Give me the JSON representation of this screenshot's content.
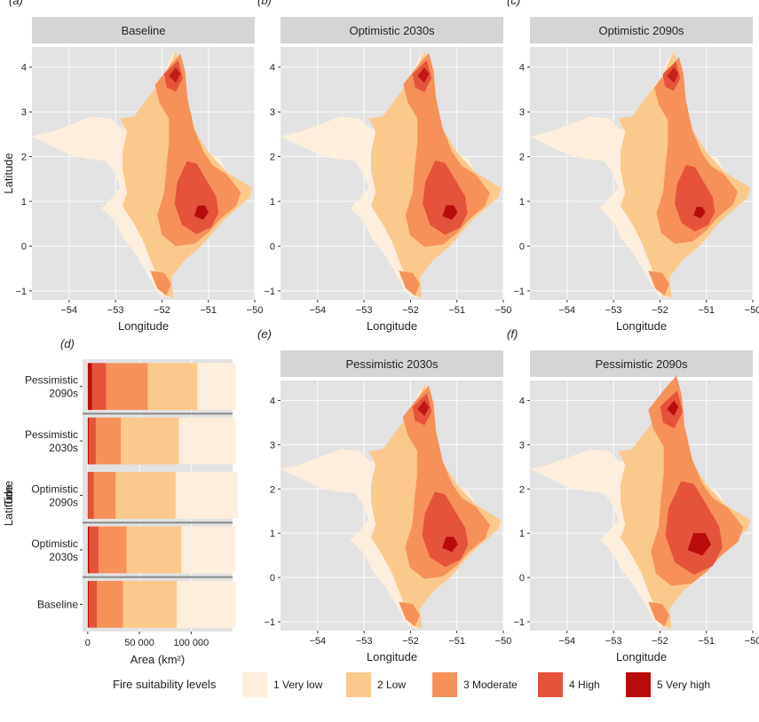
{
  "colors": {
    "panel_bg": "#e2e2e2",
    "strip_bg": "#d5d5d5",
    "grid": "#f7f7f7",
    "levels": [
      "#fdeedd",
      "#fbc98b",
      "#f6915a",
      "#e4533a",
      "#bb0c0c"
    ]
  },
  "legend": {
    "title": "Fire suitability levels",
    "entries": [
      "1 Very low",
      "2 Low",
      "3 Moderate",
      "4 High",
      "5 Very high"
    ]
  },
  "map_axes": {
    "xlabel": "Longitude",
    "ylabel": "Latitude",
    "xlim": [
      -54.8,
      -50
    ],
    "ylim": [
      -1.2,
      4.45
    ],
    "xticks": [
      -54,
      -53,
      -52,
      -51,
      -50
    ],
    "xtick_labels": [
      "−54",
      "−53",
      "−52",
      "−51",
      "−50"
    ],
    "yticks": [
      -1,
      0,
      1,
      2,
      3,
      4
    ],
    "ytick_labels": [
      "−1",
      "0",
      "1",
      "2",
      "3",
      "4"
    ]
  },
  "chart_data": [
    {
      "type": "heatmap",
      "panel": "(a)",
      "title": "Baseline",
      "xlabel": "Longitude",
      "ylabel": "Latitude",
      "xlim": [
        -54.8,
        -50
      ],
      "ylim": [
        -1.2,
        4.45
      ],
      "high_intensity": 1.0
    },
    {
      "type": "heatmap",
      "panel": "(b)",
      "title": "Optimistic 2030s",
      "xlabel": "Longitude",
      "ylabel": "",
      "xlim": [
        -54.8,
        -50
      ],
      "ylim": [
        -1.2,
        4.45
      ],
      "high_intensity": 1.05
    },
    {
      "type": "heatmap",
      "panel": "(c)",
      "title": "Optimistic 2090s",
      "xlabel": "Longitude",
      "ylabel": "",
      "xlim": [
        -54.8,
        -50
      ],
      "ylim": [
        -1.2,
        4.45
      ],
      "high_intensity": 0.8
    },
    {
      "type": "bar",
      "panel": "(d)",
      "orientation": "horizontal",
      "stacked": true,
      "xlabel": "Area (km²)",
      "ylabel": "Time",
      "xlim": [
        -5000,
        140000
      ],
      "xticks": [
        0,
        50000,
        100000
      ],
      "xtick_labels": [
        "0",
        "50 000",
        "100 000"
      ],
      "categories": [
        "Pessimistic 2090s",
        "Pessimistic 2030s",
        "Optimistic 2090s",
        "Optimistic 2030s",
        "Baseline"
      ],
      "series": [
        {
          "name": "1 Very low",
          "values": [
            37000,
            55000,
            60000,
            52000,
            57000
          ]
        },
        {
          "name": "2 Low",
          "values": [
            48000,
            56000,
            58000,
            53000,
            52000
          ]
        },
        {
          "name": "3 Moderate",
          "values": [
            40000,
            24000,
            21000,
            27000,
            25000
          ]
        },
        {
          "name": "4 High",
          "values": [
            14000,
            7000,
            5500,
            9000,
            8000
          ]
        },
        {
          "name": "5 Very high",
          "values": [
            4000,
            1000,
            500,
            1500,
            1000
          ]
        }
      ]
    },
    {
      "type": "heatmap",
      "panel": "(e)",
      "title": "Pessimistic 2030s",
      "xlabel": "Longitude",
      "ylabel": "Latitude",
      "xlim": [
        -54.8,
        -50
      ],
      "ylim": [
        -1.2,
        4.45
      ],
      "high_intensity": 1.1
    },
    {
      "type": "heatmap",
      "panel": "(f)",
      "title": "Pessimistic 2090s",
      "xlabel": "Longitude",
      "ylabel": "",
      "xlim": [
        -54.8,
        -50
      ],
      "ylim": [
        -1.2,
        4.45
      ],
      "high_intensity": 1.7
    }
  ]
}
